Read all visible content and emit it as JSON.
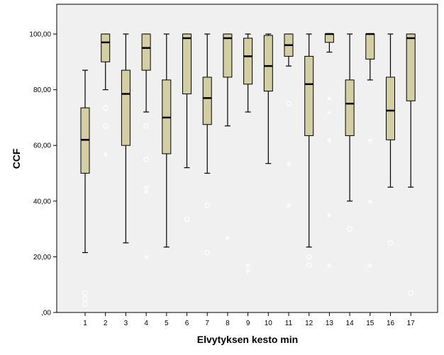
{
  "chart_data": {
    "type": "boxplot",
    "title": "",
    "xlabel": "Elvytyksen kesto min",
    "ylabel": "CCF",
    "ylim": [
      0,
      100
    ],
    "yticks": [
      0,
      20,
      40,
      60,
      80,
      100
    ],
    "ytick_labels": [
      ",00",
      "20,00",
      "40,00",
      "60,00",
      "80,00",
      "100,00"
    ],
    "grid": false,
    "plot_background": "#f0f0f0",
    "box_fill": "#d3cea3",
    "categories": [
      "1",
      "2",
      "3",
      "4",
      "5",
      "6",
      "7",
      "8",
      "9",
      "10",
      "11",
      "12",
      "13",
      "14",
      "15",
      "16",
      "17"
    ],
    "boxes": [
      {
        "category": "1",
        "whisker_low": 21.5,
        "q1": 50,
        "median": 62,
        "q3": 73.5,
        "whisker_high": 87,
        "outliers": [
          7,
          5,
          3
        ],
        "extremes": []
      },
      {
        "category": "2",
        "whisker_low": 80,
        "q1": 90,
        "median": 97,
        "q3": 100,
        "whisker_high": 100,
        "outliers": [
          73.5,
          67
        ],
        "extremes": [
          57
        ]
      },
      {
        "category": "3",
        "whisker_low": 25,
        "q1": 60,
        "median": 78.5,
        "q3": 87,
        "whisker_high": 100,
        "outliers": [],
        "extremes": []
      },
      {
        "category": "4",
        "whisker_low": 72,
        "q1": 87,
        "median": 95,
        "q3": 100,
        "whisker_high": 100,
        "outliers": [
          67,
          55
        ],
        "extremes": [
          45,
          43.5,
          20
        ]
      },
      {
        "category": "5",
        "whisker_low": 23.5,
        "q1": 57,
        "median": 70,
        "q3": 83.5,
        "whisker_high": 100,
        "outliers": [],
        "extremes": []
      },
      {
        "category": "6",
        "whisker_low": 52,
        "q1": 78.5,
        "median": 98.5,
        "q3": 100,
        "whisker_high": 100,
        "outliers": [
          33.5
        ],
        "extremes": []
      },
      {
        "category": "7",
        "whisker_low": 50,
        "q1": 67.5,
        "median": 77,
        "q3": 84.5,
        "whisker_high": 100,
        "outliers": [
          38.5,
          21.5
        ],
        "extremes": []
      },
      {
        "category": "8",
        "whisker_low": 67,
        "q1": 84.5,
        "median": 98.5,
        "q3": 100,
        "whisker_high": 100,
        "outliers": [],
        "extremes": [
          27
        ]
      },
      {
        "category": "9",
        "whisker_low": 72,
        "q1": 82,
        "median": 92,
        "q3": 98.5,
        "whisker_high": 100,
        "outliers": [],
        "extremes": [
          17,
          15
        ]
      },
      {
        "category": "10",
        "whisker_low": 53.5,
        "q1": 79.5,
        "median": 88.5,
        "q3": 99.5,
        "whisker_high": 100,
        "outliers": [],
        "extremes": []
      },
      {
        "category": "11",
        "whisker_low": 88.5,
        "q1": 92,
        "median": 96,
        "q3": 100,
        "whisker_high": 100,
        "outliers": [
          75
        ],
        "extremes": [
          53.5,
          38.5
        ]
      },
      {
        "category": "12",
        "whisker_low": 23.5,
        "q1": 63.5,
        "median": 82,
        "q3": 92,
        "whisker_high": 100,
        "outliers": [
          20,
          17
        ],
        "extremes": []
      },
      {
        "category": "13",
        "whisker_low": 93.5,
        "q1": 97,
        "median": 100,
        "q3": 100,
        "whisker_high": 100,
        "outliers": [],
        "extremes": [
          77,
          72,
          62,
          35,
          17
        ]
      },
      {
        "category": "14",
        "whisker_low": 40,
        "q1": 63.5,
        "median": 75,
        "q3": 83.5,
        "whisker_high": 100,
        "outliers": [
          30
        ],
        "extremes": []
      },
      {
        "category": "15",
        "whisker_low": 83.5,
        "q1": 91,
        "median": 100,
        "q3": 100,
        "whisker_high": 100,
        "outliers": [],
        "extremes": [
          62,
          40,
          17
        ]
      },
      {
        "category": "16",
        "whisker_low": 45,
        "q1": 62,
        "median": 72.5,
        "q3": 84.5,
        "whisker_high": 100,
        "outliers": [
          25
        ],
        "extremes": []
      },
      {
        "category": "17",
        "whisker_low": 45,
        "q1": 76,
        "median": 98.5,
        "q3": 100,
        "whisker_high": 100,
        "outliers": [
          7
        ],
        "extremes": []
      }
    ]
  }
}
